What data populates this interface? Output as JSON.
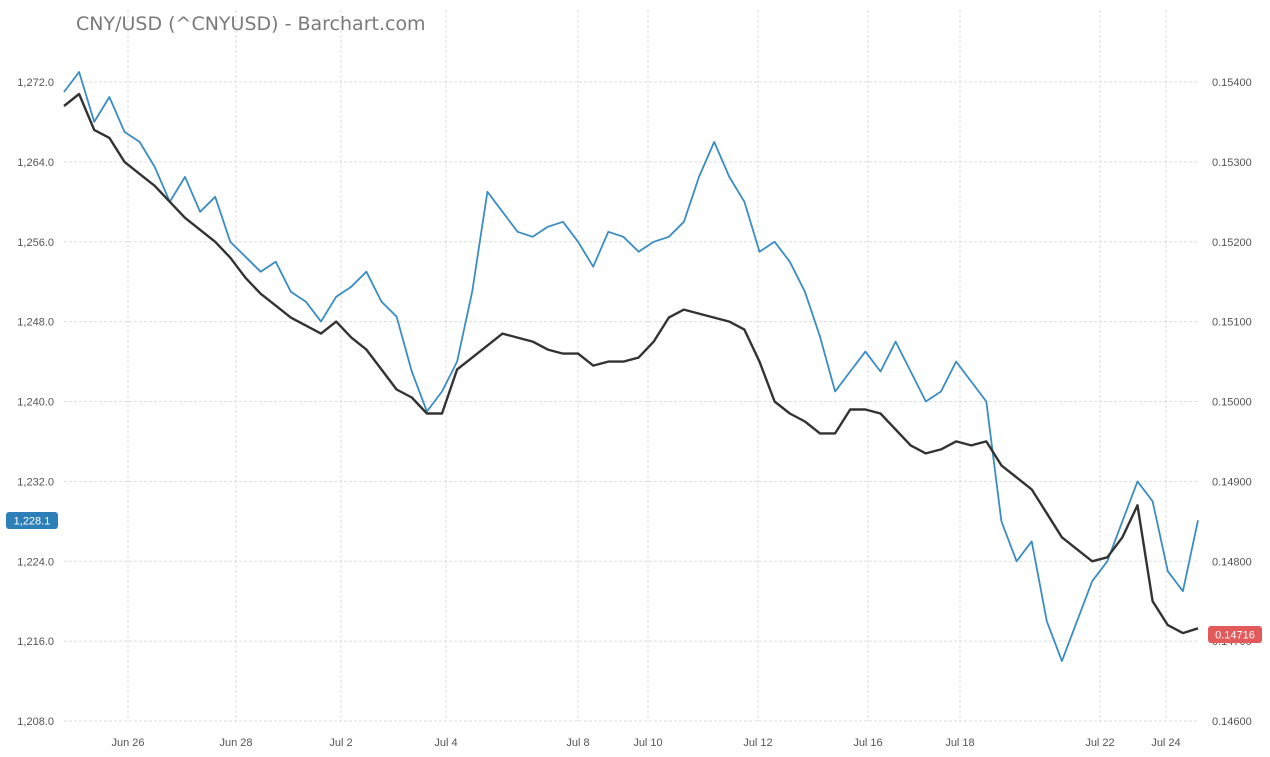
{
  "chart_data": {
    "type": "line",
    "title": "CNY/USD (^CNYUSD) - Barchart.com",
    "x_labels": [
      "Jun 26",
      "Jun 28",
      "Jul 2",
      "Jul 4",
      "Jul 8",
      "Jul 10",
      "Jul 12",
      "Jul 16",
      "Jul 18",
      "Jul 22",
      "Jul 24"
    ],
    "left_axis": {
      "ticks": [
        "1,272.0",
        "1,264.0",
        "1,256.0",
        "1,248.0",
        "1,240.0",
        "1,232.0",
        "1,224.0",
        "1,216.0",
        "1,208.0"
      ],
      "ylim": [
        1208.0,
        1272.0
      ],
      "last_value_label": "1,228.1"
    },
    "right_axis": {
      "ticks": [
        "0.15400",
        "0.15300",
        "0.15200",
        "0.15100",
        "0.15000",
        "0.14900",
        "0.14800",
        "0.14700",
        "0.14600"
      ],
      "ylim": [
        0.146,
        0.154
      ],
      "last_value_label": "0.14716"
    },
    "colors": {
      "blue_series": "#3a8dc4",
      "dark_series": "#333333",
      "grid": "#dddddd",
      "left_badge": "#2d7fb8",
      "right_badge": "#e25a5a"
    },
    "series": [
      {
        "axis": "left",
        "color": "#3a8dc4",
        "x": [
          0,
          0.4,
          0.8,
          1.2,
          1.6,
          2.0,
          2.4,
          2.8,
          3.2,
          3.6,
          4.0,
          4.4,
          4.8,
          5.2,
          5.6,
          6.0,
          6.4,
          6.8,
          7.2,
          7.6,
          8.0,
          8.4,
          8.8,
          9.2,
          9.6,
          10.0,
          10.4,
          10.8,
          11.2,
          11.6,
          12.0,
          12.4,
          12.8,
          13.2,
          13.6,
          14.0,
          14.4,
          14.8,
          15.2,
          15.6,
          16.0,
          16.4,
          16.8,
          17.2,
          17.6,
          18.0,
          18.4,
          18.8,
          19.2,
          19.6,
          20.0,
          20.4,
          20.8,
          21.2,
          21.6,
          22.0,
          22.4,
          22.8,
          23.2,
          23.6,
          24.0,
          24.4,
          24.8,
          25.2,
          25.6,
          26.0,
          26.4,
          26.8,
          27.2,
          27.6,
          28.0,
          28.4,
          28.8,
          29.2,
          29.6,
          30.0
        ],
        "values": [
          1271.0,
          1273.0,
          1268.0,
          1270.5,
          1267.0,
          1266.0,
          1263.5,
          1260.0,
          1262.5,
          1259.0,
          1260.5,
          1256.0,
          1254.5,
          1253.0,
          1254.0,
          1251.0,
          1250.0,
          1248.0,
          1250.5,
          1251.5,
          1253.0,
          1250.0,
          1248.5,
          1243.0,
          1239.0,
          1241.0,
          1244.0,
          1251.0,
          1261.0,
          1259.0,
          1257.0,
          1256.5,
          1257.5,
          1258.0,
          1256.0,
          1253.5,
          1257.0,
          1256.5,
          1255.0,
          1256.0,
          1256.5,
          1258.0,
          1262.5,
          1266.0,
          1262.5,
          1260.0,
          1255.0,
          1256.0,
          1254.0,
          1251.0,
          1246.5,
          1241.0,
          1243.0,
          1245.0,
          1243.0,
          1246.0,
          1243.0,
          1240.0,
          1241.0,
          1244.0,
          1242.0,
          1240.0,
          1228.0,
          1224.0,
          1226.0,
          1218.0,
          1214.0,
          1218.0,
          1222.0,
          1224.0,
          1228.0,
          1232.0,
          1230.0,
          1223.0,
          1221.0,
          1228.1
        ]
      },
      {
        "axis": "right",
        "color": "#333333",
        "x": [
          0,
          0.4,
          0.8,
          1.2,
          1.6,
          2.0,
          2.4,
          2.8,
          3.2,
          3.6,
          4.0,
          4.4,
          4.8,
          5.2,
          5.6,
          6.0,
          6.4,
          6.8,
          7.2,
          7.6,
          8.0,
          8.4,
          8.8,
          9.2,
          9.6,
          10.0,
          10.4,
          10.8,
          11.2,
          11.6,
          12.0,
          12.4,
          12.8,
          13.2,
          13.6,
          14.0,
          14.4,
          14.8,
          15.2,
          15.6,
          16.0,
          16.4,
          16.8,
          17.2,
          17.6,
          18.0,
          18.4,
          18.8,
          19.2,
          19.6,
          20.0,
          20.4,
          20.8,
          21.2,
          21.6,
          22.0,
          22.4,
          22.8,
          23.2,
          23.6,
          24.0,
          24.4,
          24.8,
          25.2,
          25.6,
          26.0,
          26.4,
          26.8,
          27.2,
          27.6,
          28.0,
          28.4,
          28.8,
          29.2,
          29.6,
          30.0
        ],
        "values": [
          0.1537,
          0.15385,
          0.1534,
          0.1533,
          0.153,
          0.15285,
          0.1527,
          0.1525,
          0.1523,
          0.15215,
          0.152,
          0.1518,
          0.15155,
          0.15135,
          0.1512,
          0.15105,
          0.15095,
          0.15085,
          0.151,
          0.1508,
          0.15065,
          0.1504,
          0.15015,
          0.15005,
          0.14985,
          0.14985,
          0.1504,
          0.15055,
          0.1507,
          0.15085,
          0.1508,
          0.15075,
          0.15065,
          0.1506,
          0.1506,
          0.15045,
          0.1505,
          0.1505,
          0.15055,
          0.15075,
          0.15105,
          0.15115,
          0.1511,
          0.15105,
          0.151,
          0.1509,
          0.1505,
          0.15,
          0.14985,
          0.14975,
          0.1496,
          0.1496,
          0.1499,
          0.1499,
          0.14985,
          0.14965,
          0.14945,
          0.14935,
          0.1494,
          0.1495,
          0.14945,
          0.1495,
          0.1492,
          0.14905,
          0.1489,
          0.1486,
          0.1483,
          0.14815,
          0.148,
          0.14805,
          0.1483,
          0.1487,
          0.1475,
          0.1472,
          0.1471,
          0.14716
        ]
      }
    ]
  }
}
